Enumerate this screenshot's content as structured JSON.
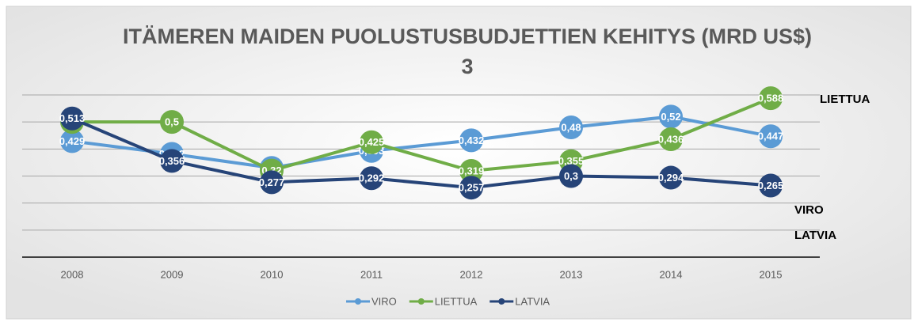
{
  "chart_data": {
    "type": "line",
    "title": "ITÄMEREN MAIDEN PUOLUSTUSBUDJETTIEN KEHITYS (MRD US$)",
    "subtitle": "3",
    "categories": [
      "2008",
      "2009",
      "2010",
      "2011",
      "2012",
      "2013",
      "2014",
      "2015"
    ],
    "series": [
      {
        "name": "VIRO",
        "color": "#5b9bd5",
        "values": [
          0.429,
          0.382,
          0.33,
          0.393,
          0.432,
          0.48,
          0.52,
          0.447
        ],
        "value_labels": [
          "0,429",
          "0,382",
          "0,33",
          "0,393",
          "0,432",
          "0,48",
          "0,52",
          "0,447"
        ]
      },
      {
        "name": "LIETTUA",
        "color": "#70ad47",
        "values": [
          0.5,
          0.5,
          0.32,
          0.425,
          0.319,
          0.355,
          0.436,
          0.588
        ],
        "value_labels": [
          "0,5",
          "0,5",
          "0,32",
          "0,425",
          "0,319",
          "0,355",
          "0,436",
          "0,588"
        ]
      },
      {
        "name": "LATVIA",
        "color": "#264478",
        "values": [
          0.513,
          0.356,
          0.277,
          0.292,
          0.257,
          0.3,
          0.294,
          0.265
        ],
        "value_labels": [
          "0,513",
          "0,356",
          "0,277",
          "0,292",
          "0,257",
          "0,3",
          "0,294",
          "0,265"
        ]
      }
    ],
    "annotations": [
      "LIETTUA",
      "VIRO",
      "LATVIA"
    ],
    "ylim": [
      0,
      0.6
    ],
    "yticks": [
      0,
      0.1,
      0.2,
      0.3,
      0.4,
      0.5,
      0.6
    ],
    "grid": true,
    "legend": "bottom"
  }
}
